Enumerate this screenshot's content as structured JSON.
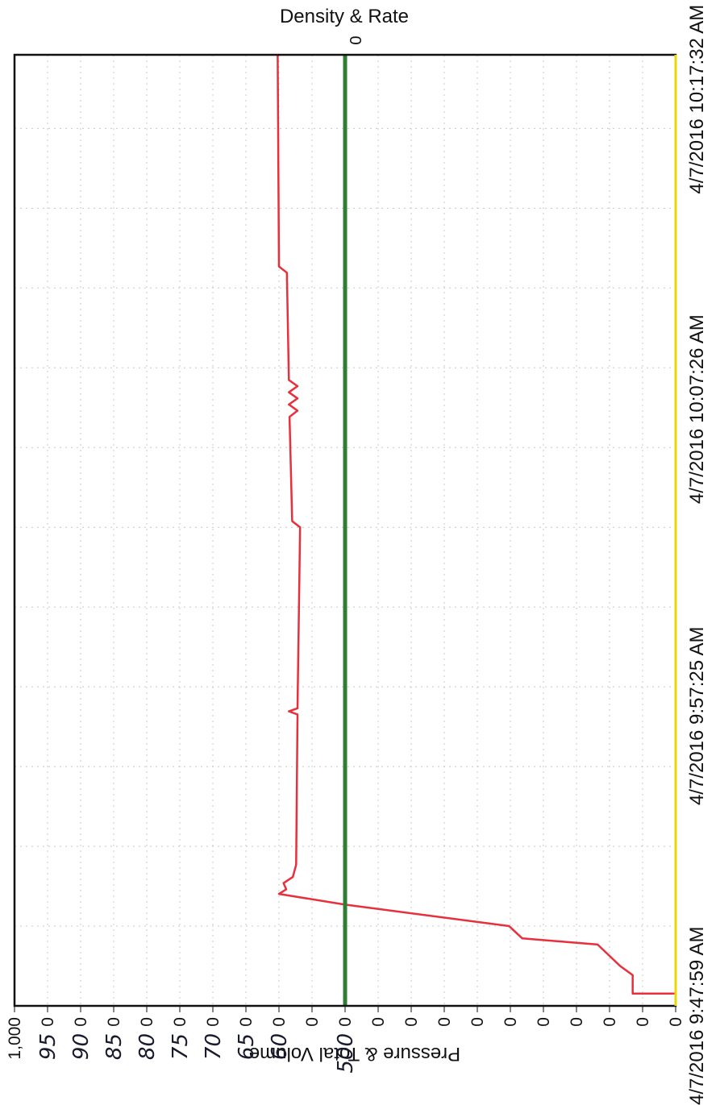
{
  "chart_data": {
    "type": "line",
    "title": "Density & Rate",
    "top_axis_tick": "0",
    "ylabel": "Pressure & Total Volume",
    "x_tick_labels": [
      "4/7/2016 9:47:59 AM",
      "4/7/2016 9:57:25 AM",
      "4/7/2016 10:07:26 AM",
      "4/7/2016 10:17:32 AM"
    ],
    "x_range": [
      "9:47:59 AM",
      "10:19:00 AM"
    ],
    "y_tick_labels": [
      "1,000",
      "0",
      "0",
      "0",
      "0",
      "0",
      "0",
      "0",
      "0",
      "0",
      "0",
      "0",
      "0",
      "0",
      "0",
      "0",
      "0",
      "0",
      "0",
      "0",
      "0"
    ],
    "handwritten_tick_labels": [
      "95",
      "90",
      "85",
      "80",
      "75",
      "70",
      "65",
      "60",
      "500"
    ],
    "ylim": [
      0,
      1000
    ],
    "grid": true,
    "series": [
      {
        "color": "#e8303c",
        "points": [
          [
            0.0,
            0
          ],
          [
            0.4,
            0
          ],
          [
            0.4,
            65
          ],
          [
            1.0,
            65
          ],
          [
            1.3,
            84
          ],
          [
            2.0,
            118
          ],
          [
            2.2,
            232
          ],
          [
            2.6,
            252
          ],
          [
            3.3,
            500
          ],
          [
            3.65,
            600
          ],
          [
            3.8,
            589
          ],
          [
            4.0,
            593
          ],
          [
            4.2,
            579
          ],
          [
            4.6,
            574
          ],
          [
            9.5,
            572
          ],
          [
            9.6,
            585
          ],
          [
            9.7,
            572
          ],
          [
            15.6,
            568
          ],
          [
            15.8,
            580
          ],
          [
            19.2,
            584
          ],
          [
            19.4,
            572
          ],
          [
            19.6,
            585
          ],
          [
            19.8,
            572
          ],
          [
            20.0,
            585
          ],
          [
            20.2,
            572
          ],
          [
            20.4,
            585
          ],
          [
            23.9,
            588
          ],
          [
            24.1,
            600
          ],
          [
            31.0,
            602
          ]
        ]
      },
      {
        "color": "#2e7d32",
        "points": [
          [
            0.0,
            500
          ],
          [
            31.0,
            500
          ]
        ]
      }
    ],
    "colors": {
      "frame": "#111111",
      "grid": "#c8c8c8",
      "right_edge": "#e8d800"
    }
  }
}
